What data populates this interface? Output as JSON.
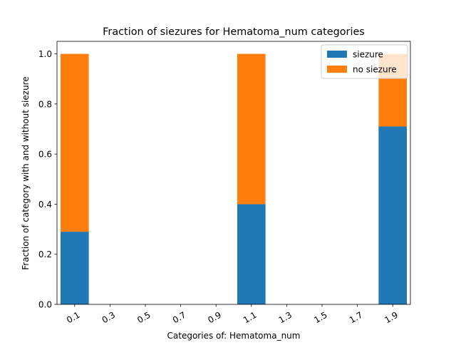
{
  "chart_data": {
    "type": "bar",
    "stacked": true,
    "title": "Fraction of siezures for Hematoma_num categories",
    "xlabel": "Categories of: Hematoma_num",
    "ylabel": "Fraction of category with and without siezure",
    "x_ticks": [
      "0.1",
      "0.3",
      "0.5",
      "0.7",
      "0.9",
      "1.1",
      "1.3",
      "1.5",
      "1.7",
      "1.9"
    ],
    "x_range": [
      0.0,
      2.0
    ],
    "bar_width": 0.16,
    "ylim": [
      0,
      1.05
    ],
    "y_ticks": [
      "0.0",
      "0.2",
      "0.4",
      "0.6",
      "0.8",
      "1.0"
    ],
    "categories": [
      "0.1",
      "1.1",
      "1.9"
    ],
    "x": [
      0.1,
      1.1,
      1.9
    ],
    "series": [
      {
        "name": "siezure",
        "values": [
          0.29,
          0.4,
          0.71
        ],
        "color": "#1f77b4"
      },
      {
        "name": "no siezure",
        "values": [
          0.71,
          0.6,
          0.29
        ],
        "color": "#ff7f0e"
      }
    ],
    "grid": false,
    "legend_position": "upper-right",
    "x_tick_rotation": "rotated"
  }
}
